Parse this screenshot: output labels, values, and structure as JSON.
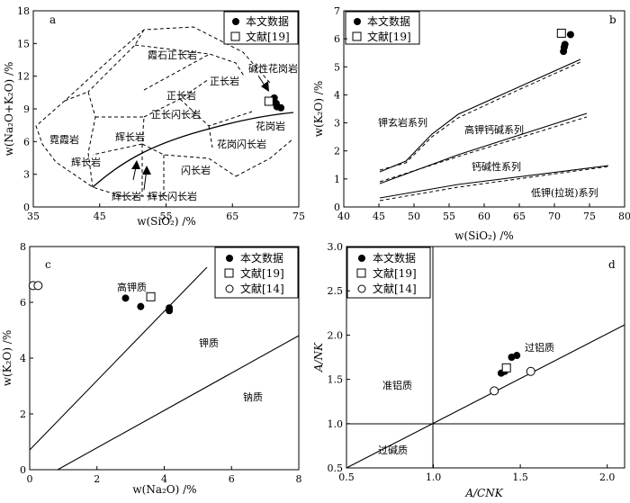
{
  "chart_data": [
    {
      "id": "a",
      "type": "scatter",
      "panel_label": "a",
      "xlabel": "w(SiO₂) /%",
      "ylabel": "w(Na₂O+K₂O) /%",
      "xlim": [
        35,
        75
      ],
      "ylim": [
        0,
        18
      ],
      "xticks": [
        35,
        45,
        55,
        65,
        75
      ],
      "yticks": [
        0,
        3,
        6,
        9,
        12,
        15,
        18
      ],
      "legend": [
        "本文数据",
        "文献[19]"
      ],
      "fields": [
        "霓霞岩",
        "霞石正长岩",
        "正长岩",
        "碱性花岗岩",
        "正长岩",
        "正长闪长岩",
        "辉长岩",
        "辉长岩",
        "闪长岩",
        "花岗闪长岩",
        "花岗岩",
        "辉长岩",
        "辉长闪长岩"
      ],
      "series": [
        {
          "name": "本文数据",
          "marker": "filled-circle",
          "points": [
            [
              71.3,
              10.0
            ],
            [
              71.6,
              9.5
            ],
            [
              71.7,
              9.2
            ],
            [
              72.3,
              9.1
            ]
          ]
        },
        {
          "name": "文献[19]",
          "marker": "open-square",
          "points": [
            [
              70.5,
              9.7
            ]
          ]
        }
      ]
    },
    {
      "id": "b",
      "type": "scatter",
      "panel_label": "b",
      "xlabel": "w(SiO₂) /%",
      "ylabel": "w(K₂O) /%",
      "xlim": [
        40,
        80
      ],
      "ylim": [
        0,
        7
      ],
      "xticks": [
        40,
        45,
        50,
        55,
        60,
        65,
        70,
        75,
        80
      ],
      "yticks": [
        0,
        1,
        2,
        3,
        4,
        5,
        6,
        7
      ],
      "legend": [
        "本文数据",
        "文献[19]"
      ],
      "fields": [
        "钾玄岩系列",
        "高钾钙碱系列",
        "钙碱性系列",
        "低钾(拉斑)系列"
      ],
      "series": [
        {
          "name": "本文数据",
          "marker": "filled-circle",
          "points": [
            [
              71.3,
              5.55
            ],
            [
              71.4,
              5.7
            ],
            [
              71.5,
              5.8
            ],
            [
              72.3,
              6.15
            ]
          ]
        },
        {
          "name": "文献[19]",
          "marker": "open-square",
          "points": [
            [
              71.0,
              6.2
            ]
          ]
        }
      ]
    },
    {
      "id": "c",
      "type": "scatter",
      "panel_label": "c",
      "xlabel": "w(Na₂O) /%",
      "ylabel": "w(K₂O) /%",
      "xlim": [
        0,
        8
      ],
      "ylim": [
        0,
        8
      ],
      "xticks": [
        0,
        2,
        4,
        6,
        8
      ],
      "yticks": [
        0,
        2,
        4,
        6,
        8
      ],
      "legend": [
        "本文数据",
        "文献[19]",
        "文献[14]"
      ],
      "fields": [
        "高钾质",
        "钾质",
        "钠质"
      ],
      "series": [
        {
          "name": "本文数据",
          "marker": "filled-circle",
          "points": [
            [
              2.85,
              6.15
            ],
            [
              3.3,
              5.85
            ],
            [
              4.15,
              5.8
            ],
            [
              4.15,
              5.7
            ]
          ]
        },
        {
          "name": "文献[19]",
          "marker": "open-square",
          "points": [
            [
              3.6,
              6.2
            ]
          ]
        },
        {
          "name": "文献[14]",
          "marker": "open-circle",
          "points": [
            [
              0.1,
              6.6
            ],
            [
              0.25,
              6.6
            ]
          ]
        }
      ]
    },
    {
      "id": "d",
      "type": "scatter",
      "panel_label": "d",
      "xlabel": "A/CNK",
      "ylabel": "A/NK",
      "xlim": [
        0.5,
        2.1
      ],
      "ylim": [
        0.5,
        3.0
      ],
      "xticks": [
        "0.5",
        "1.0",
        "1.5",
        "2.0"
      ],
      "yticks": [
        "0.5",
        "1.0",
        "1.5",
        "2.0",
        "2.5",
        "3.0"
      ],
      "legend": [
        "本文数据",
        "文献[19]",
        "文献[14]"
      ],
      "fields": [
        "过铝质",
        "准铝质",
        "过碱质"
      ],
      "series": [
        {
          "name": "本文数据",
          "marker": "filled-circle",
          "points": [
            [
              1.39,
              1.57
            ],
            [
              1.41,
              1.59
            ],
            [
              1.45,
              1.75
            ],
            [
              1.48,
              1.77
            ]
          ]
        },
        {
          "name": "文献[19]",
          "marker": "open-square",
          "points": [
            [
              1.42,
              1.63
            ]
          ]
        },
        {
          "name": "文献[14]",
          "marker": "open-circle",
          "points": [
            [
              1.35,
              1.37
            ],
            [
              1.56,
              1.59
            ]
          ]
        }
      ]
    }
  ]
}
